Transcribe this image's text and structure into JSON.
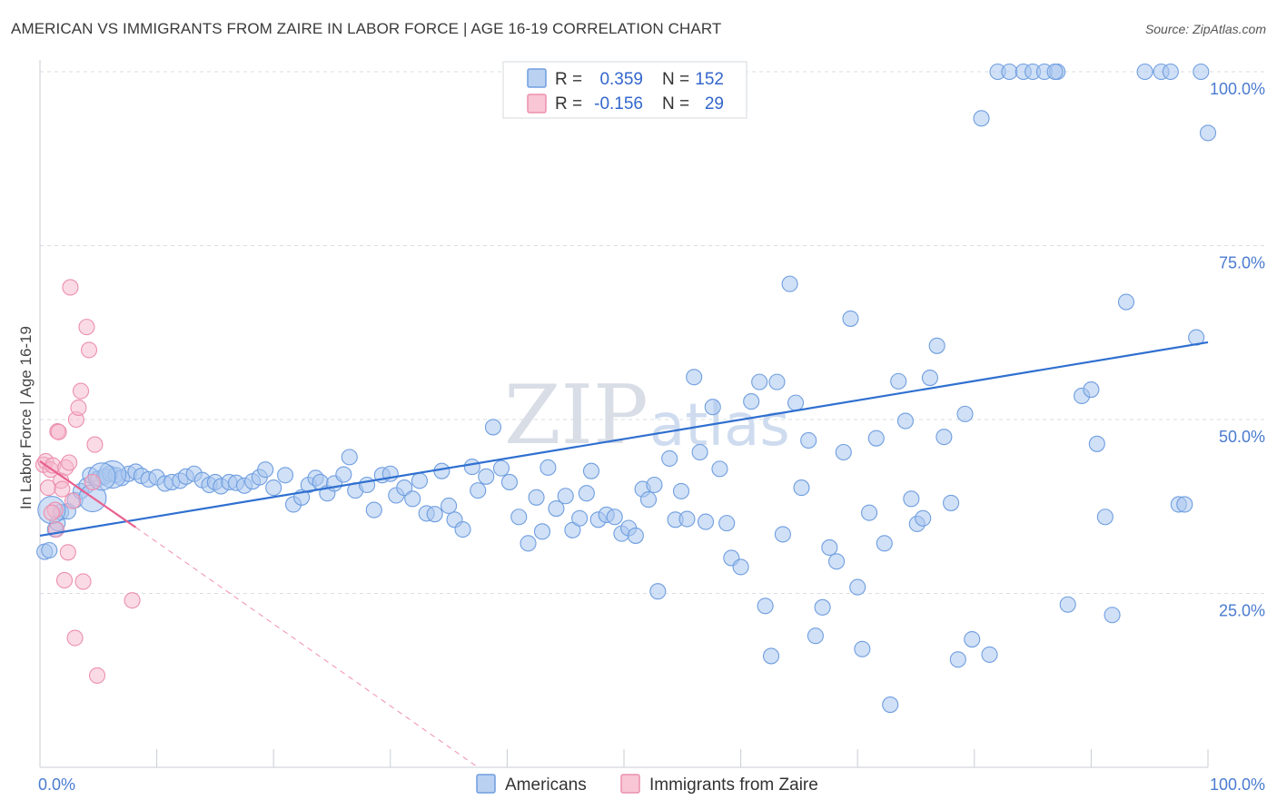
{
  "title": "AMERICAN VS IMMIGRANTS FROM ZAIRE IN LABOR FORCE | AGE 16-19 CORRELATION CHART",
  "source": "Source: ZipAtlas.com",
  "watermark": {
    "zip": "ZIP",
    "atlas": "atlas"
  },
  "colors": {
    "americans_fill": "#a9c6ef",
    "americans_stroke": "#6f9ee0",
    "americans_line": "#2f6fd0",
    "zaire_fill": "#f6b8cb",
    "zaire_stroke": "#ec8fae",
    "zaire_line": "#e9608f",
    "grid": "#d9dde3",
    "axis_text": "#4a7bd0"
  },
  "legend": {
    "rows": [
      {
        "r_label": "R =",
        "r_value": "0.359",
        "n_label": "N =",
        "n_value": "152"
      },
      {
        "r_label": "R =",
        "r_value": "-0.156",
        "n_label": "N =",
        "n_value": "29"
      }
    ]
  },
  "chart_data": {
    "type": "scatter",
    "title": "AMERICAN VS IMMIGRANTS FROM ZAIRE IN LABOR FORCE | AGE 16-19 CORRELATION CHART",
    "xlabel": "",
    "ylabel": "In Labor Force | Age 16-19",
    "xlim": [
      0,
      100
    ],
    "ylim": [
      0,
      100
    ],
    "x_tick_labels": [
      "0.0%",
      "100.0%"
    ],
    "y_ticks": [
      25,
      50,
      75,
      100
    ],
    "y_tick_labels": [
      "25.0%",
      "50.0%",
      "75.0%",
      "100.0%"
    ],
    "legend_position": "bottom",
    "series": [
      {
        "name": "Americans",
        "R": 0.359,
        "N": 152,
        "trend": {
          "x0": 0,
          "y0": 33.3,
          "x1": 100,
          "y1": 61.1
        },
        "points": [
          [
            0.4,
            31.0
          ],
          [
            0.8,
            31.2
          ],
          [
            1.3,
            34.2
          ],
          [
            1.5,
            35.1
          ],
          [
            1.8,
            36.7
          ],
          [
            2.4,
            36.8
          ],
          [
            3.0,
            38.4
          ],
          [
            3.5,
            39.7
          ],
          [
            4.0,
            40.5
          ],
          [
            4.3,
            42.0
          ],
          [
            5.0,
            41.5
          ],
          [
            5.5,
            41.8
          ],
          [
            6.0,
            42.2
          ],
          [
            6.5,
            42.0
          ],
          [
            7.0,
            41.6
          ],
          [
            7.6,
            42.2
          ],
          [
            8.2,
            42.5
          ],
          [
            8.7,
            41.9
          ],
          [
            9.3,
            41.4
          ],
          [
            10.0,
            41.7
          ],
          [
            10.7,
            40.8
          ],
          [
            11.3,
            41.0
          ],
          [
            12.0,
            41.2
          ],
          [
            12.5,
            41.8
          ],
          [
            13.2,
            42.2
          ],
          [
            13.9,
            41.3
          ],
          [
            14.5,
            40.6
          ],
          [
            15.0,
            41.0
          ],
          [
            15.5,
            40.4
          ],
          [
            16.2,
            41.0
          ],
          [
            16.8,
            40.9
          ],
          [
            17.5,
            40.5
          ],
          [
            18.2,
            41.1
          ],
          [
            18.8,
            41.7
          ],
          [
            19.3,
            42.8
          ],
          [
            20.0,
            40.2
          ],
          [
            21.0,
            42.0
          ],
          [
            21.7,
            37.8
          ],
          [
            22.4,
            38.8
          ],
          [
            23.0,
            40.6
          ],
          [
            23.6,
            41.6
          ],
          [
            24.0,
            41.0
          ],
          [
            24.6,
            39.4
          ],
          [
            25.2,
            40.8
          ],
          [
            26.0,
            42.1
          ],
          [
            26.5,
            44.6
          ],
          [
            27.0,
            39.8
          ],
          [
            28.0,
            40.6
          ],
          [
            28.6,
            37.0
          ],
          [
            29.3,
            42.0
          ],
          [
            30.0,
            42.2
          ],
          [
            30.5,
            39.1
          ],
          [
            31.2,
            40.2
          ],
          [
            31.9,
            38.6
          ],
          [
            32.5,
            41.2
          ],
          [
            33.1,
            36.5
          ],
          [
            33.8,
            36.4
          ],
          [
            34.4,
            42.6
          ],
          [
            35.0,
            37.6
          ],
          [
            35.5,
            35.6
          ],
          [
            36.2,
            34.2
          ],
          [
            37.0,
            43.2
          ],
          [
            37.5,
            39.8
          ],
          [
            38.2,
            41.8
          ],
          [
            38.8,
            48.9
          ],
          [
            39.5,
            43.0
          ],
          [
            40.2,
            41.0
          ],
          [
            41.0,
            36.0
          ],
          [
            41.8,
            32.2
          ],
          [
            42.5,
            38.8
          ],
          [
            43.0,
            33.9
          ],
          [
            43.5,
            43.1
          ],
          [
            44.2,
            37.2
          ],
          [
            45.0,
            39.0
          ],
          [
            45.6,
            34.1
          ],
          [
            46.2,
            35.8
          ],
          [
            46.8,
            39.4
          ],
          [
            47.2,
            42.6
          ],
          [
            47.8,
            35.6
          ],
          [
            48.5,
            36.3
          ],
          [
            49.2,
            36.0
          ],
          [
            49.8,
            33.6
          ],
          [
            50.4,
            34.4
          ],
          [
            51.0,
            33.3
          ],
          [
            51.6,
            40.0
          ],
          [
            52.1,
            38.5
          ],
          [
            52.6,
            40.6
          ],
          [
            52.9,
            25.3
          ],
          [
            53.9,
            44.4
          ],
          [
            54.4,
            35.6
          ],
          [
            54.9,
            39.7
          ],
          [
            55.4,
            35.7
          ],
          [
            56.0,
            56.1
          ],
          [
            56.5,
            45.3
          ],
          [
            57.0,
            35.3
          ],
          [
            57.6,
            51.8
          ],
          [
            58.2,
            42.9
          ],
          [
            58.8,
            35.1
          ],
          [
            59.2,
            30.1
          ],
          [
            60.0,
            28.8
          ],
          [
            60.9,
            52.6
          ],
          [
            61.6,
            55.4
          ],
          [
            62.1,
            23.2
          ],
          [
            62.6,
            16.0
          ],
          [
            63.1,
            55.4
          ],
          [
            63.6,
            33.5
          ],
          [
            64.2,
            69.5
          ],
          [
            64.7,
            52.4
          ],
          [
            65.2,
            40.2
          ],
          [
            65.8,
            47.0
          ],
          [
            66.4,
            18.9
          ],
          [
            67.0,
            23.0
          ],
          [
            67.6,
            31.6
          ],
          [
            68.2,
            29.6
          ],
          [
            68.8,
            45.3
          ],
          [
            69.4,
            64.5
          ],
          [
            70.0,
            25.9
          ],
          [
            70.4,
            17.0
          ],
          [
            71.0,
            36.6
          ],
          [
            71.6,
            47.3
          ],
          [
            72.3,
            32.2
          ],
          [
            72.8,
            9.0
          ],
          [
            73.5,
            55.5
          ],
          [
            74.1,
            49.8
          ],
          [
            74.6,
            38.6
          ],
          [
            75.1,
            35.0
          ],
          [
            75.6,
            35.8
          ],
          [
            76.2,
            56.0
          ],
          [
            76.8,
            60.6
          ],
          [
            77.4,
            47.5
          ],
          [
            78.0,
            38.0
          ],
          [
            78.6,
            15.5
          ],
          [
            79.2,
            50.8
          ],
          [
            79.8,
            18.4
          ],
          [
            80.6,
            93.3
          ],
          [
            81.3,
            16.2
          ],
          [
            82.0,
            100
          ],
          [
            83.0,
            100
          ],
          [
            84.2,
            100
          ],
          [
            85.0,
            100
          ],
          [
            86.0,
            100
          ],
          [
            87.1,
            100
          ],
          [
            88.0,
            23.4
          ],
          [
            89.2,
            53.4
          ],
          [
            90.0,
            54.3
          ],
          [
            90.5,
            46.5
          ],
          [
            91.2,
            36.0
          ],
          [
            91.8,
            21.9
          ],
          [
            93.0,
            66.9
          ],
          [
            94.6,
            100
          ],
          [
            96.0,
            100
          ],
          [
            96.8,
            100
          ],
          [
            97.5,
            37.8
          ],
          [
            98.0,
            37.8
          ],
          [
            99.0,
            61.8
          ],
          [
            100.0,
            91.2
          ],
          [
            99.4,
            100
          ],
          [
            86.9,
            100
          ]
        ],
        "big_points": [
          [
            1.0,
            37.0
          ],
          [
            4.5,
            38.7
          ],
          [
            6.2,
            42.1
          ],
          [
            5.3,
            41.8
          ]
        ]
      },
      {
        "name": "Immigrants from Zaire",
        "R": -0.156,
        "N": 29,
        "trend": {
          "x0": 0,
          "y0": 44.0,
          "x1": 8.2,
          "y1": 34.5
        },
        "trend_dashed": {
          "x0": 8.2,
          "y0": 34.5,
          "x1": 37.5,
          "y1": 0
        },
        "points": [
          [
            0.3,
            43.5
          ],
          [
            0.5,
            44.0
          ],
          [
            0.7,
            40.2
          ],
          [
            0.9,
            42.8
          ],
          [
            1.1,
            43.4
          ],
          [
            1.3,
            37.0
          ],
          [
            1.5,
            48.3
          ],
          [
            1.6,
            48.2
          ],
          [
            1.8,
            41.2
          ],
          [
            1.9,
            40.0
          ],
          [
            2.1,
            26.9
          ],
          [
            2.2,
            43.1
          ],
          [
            2.4,
            30.9
          ],
          [
            2.5,
            43.8
          ],
          [
            2.6,
            69.0
          ],
          [
            2.8,
            38.3
          ],
          [
            3.0,
            18.6
          ],
          [
            3.1,
            50.0
          ],
          [
            3.3,
            51.7
          ],
          [
            3.5,
            54.1
          ],
          [
            3.7,
            26.7
          ],
          [
            4.0,
            63.3
          ],
          [
            4.2,
            60.0
          ],
          [
            4.5,
            41.0
          ],
          [
            4.7,
            46.4
          ],
          [
            4.9,
            13.2
          ],
          [
            7.9,
            24.0
          ],
          [
            1.0,
            36.6
          ],
          [
            1.4,
            34.2
          ]
        ]
      }
    ]
  },
  "bottom_legend": {
    "americans": "Americans",
    "zaire": "Immigrants from Zaire"
  }
}
